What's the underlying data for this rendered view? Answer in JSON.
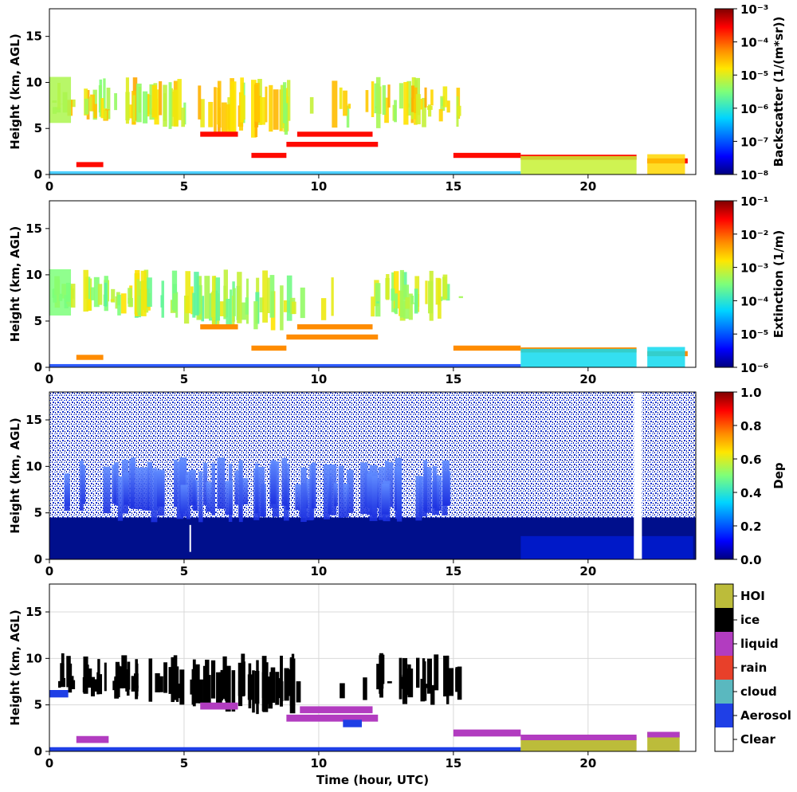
{
  "chart_data": [
    {
      "type": "heatmap",
      "ylabel": "Height (km, AGL)",
      "xlabel": "",
      "xlim": [
        0,
        24
      ],
      "ylim": [
        0,
        18
      ],
      "xticks": [
        "0",
        "5",
        "10",
        "15",
        "20"
      ],
      "yticks": [
        "0",
        "5",
        "10",
        "15"
      ],
      "colorbar": {
        "label": "Backscatter (1/(m*sr))",
        "scale": "log",
        "min": 1e-08,
        "max": 0.001,
        "ticks": [
          "10⁻⁸",
          "10⁻⁷",
          "10⁻⁶",
          "10⁻⁵",
          "10⁻⁴",
          "10⁻³"
        ]
      }
    },
    {
      "type": "heatmap",
      "ylabel": "Height (km, AGL)",
      "xlabel": "",
      "xlim": [
        0,
        24
      ],
      "ylim": [
        0,
        18
      ],
      "xticks": [
        "0",
        "5",
        "10",
        "15",
        "20"
      ],
      "yticks": [
        "0",
        "5",
        "10",
        "15"
      ],
      "colorbar": {
        "label": "Extinction (1/m)",
        "scale": "log",
        "min": 1e-06,
        "max": 0.1,
        "ticks": [
          "10⁻⁶",
          "10⁻⁵",
          "10⁻⁴",
          "10⁻³",
          "10⁻²",
          "10⁻¹"
        ]
      }
    },
    {
      "type": "heatmap",
      "ylabel": "Height (km, AGL)",
      "xlabel": "",
      "xlim": [
        0,
        24
      ],
      "ylim": [
        0,
        18
      ],
      "xticks": [
        "0",
        "5",
        "10",
        "15",
        "20"
      ],
      "yticks": [
        "0",
        "5",
        "10",
        "15"
      ],
      "colorbar": {
        "label": "Dep",
        "scale": "linear",
        "min": 0,
        "max": 1,
        "ticks": [
          "0.0",
          "0.2",
          "0.4",
          "0.6",
          "0.8",
          "1.0"
        ]
      }
    },
    {
      "type": "heatmap",
      "ylabel": "Height (km, AGL)",
      "xlabel": "Time (hour, UTC)",
      "xlim": [
        0,
        24
      ],
      "ylim": [
        0,
        18
      ],
      "xticks": [
        "0",
        "5",
        "10",
        "15",
        "20"
      ],
      "yticks": [
        "0",
        "5",
        "10",
        "15"
      ],
      "grid": true,
      "categories": [
        {
          "name": "Clear",
          "color": "#ffffff"
        },
        {
          "name": "Aerosol",
          "color": "#1f3fe6"
        },
        {
          "name": "cloud",
          "color": "#5ab8bf"
        },
        {
          "name": "rain",
          "color": "#e8402a"
        },
        {
          "name": "liquid",
          "color": "#b23cc0"
        },
        {
          "name": "ice",
          "color": "#000000"
        },
        {
          "name": "HOI",
          "color": "#bcbc3a"
        }
      ]
    }
  ]
}
